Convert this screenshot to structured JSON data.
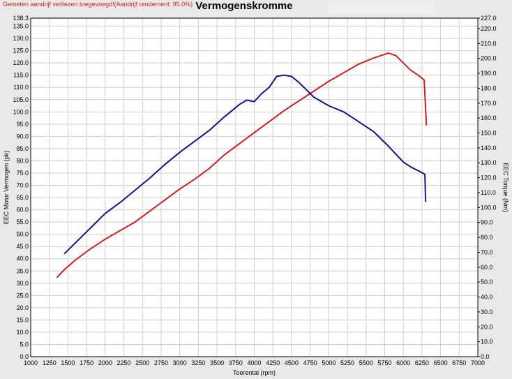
{
  "header": {
    "warning": "Gemeten aandrijf verliezen toegevoegd!(Aandrijf rendement: 95.0%)",
    "title": "Vermogenskromme"
  },
  "colors": {
    "background": "#e9e9e9",
    "plot_background": "#ffffff",
    "gridline": "#cfcfcf",
    "power_series": "#cc1f1f",
    "torque_series": "#11157f",
    "warning_text": "#d42020"
  },
  "chart_data": {
    "type": "line",
    "title": "Vermogenskromme",
    "xlabel": "Toerental (rpm)",
    "ylabel_left": "EEC Motor Vermogen (pk)",
    "ylabel_right": "EEC Torque (Nm)",
    "xlim": [
      1000,
      7000
    ],
    "ylim_left": [
      0,
      138.3
    ],
    "ylim_right": [
      0,
      227.0
    ],
    "grid": true,
    "x_ticks": [
      1000,
      1250,
      1500,
      1750,
      2000,
      2250,
      2500,
      2750,
      3000,
      3250,
      3500,
      3750,
      4000,
      4250,
      4500,
      4750,
      5000,
      5250,
      5500,
      5750,
      6000,
      6250,
      6500,
      6750,
      7000
    ],
    "y_left_ticks": [
      "0.0",
      "5.0",
      "10.0",
      "15.0",
      "20.0",
      "25.0",
      "30.0",
      "35.0",
      "40.0",
      "45.0",
      "50.0",
      "55.0",
      "60.0",
      "65.0",
      "70.0",
      "75.0",
      "80.0",
      "85.0",
      "90.0",
      "95.0",
      "100.0",
      "105.0",
      "110.0",
      "115.0",
      "120.0",
      "125.0",
      "130.0",
      "135.0",
      "138.3"
    ],
    "y_right_ticks": [
      "0.0",
      "10.0",
      "20.0",
      "30.0",
      "40.0",
      "50.0",
      "60.0",
      "70.0",
      "80.0",
      "90.0",
      "100.0",
      "110.0",
      "120.0",
      "130.0",
      "140.0",
      "150.0",
      "160.0",
      "170.0",
      "180.0",
      "190.0",
      "200.0",
      "210.0",
      "220.0",
      "227.0"
    ],
    "series": [
      {
        "axis": "left",
        "color": "#cc1f1f",
        "points": [
          [
            1350,
            32.3
          ],
          [
            1450,
            35.5
          ],
          [
            1600,
            39.5
          ],
          [
            1800,
            44.0
          ],
          [
            2000,
            48.0
          ],
          [
            2200,
            51.5
          ],
          [
            2400,
            55.0
          ],
          [
            2600,
            59.5
          ],
          [
            2800,
            64.0
          ],
          [
            3000,
            68.5
          ],
          [
            3200,
            72.5
          ],
          [
            3400,
            77.0
          ],
          [
            3600,
            82.5
          ],
          [
            3800,
            87.0
          ],
          [
            4000,
            91.5
          ],
          [
            4200,
            96.0
          ],
          [
            4400,
            100.5
          ],
          [
            4600,
            104.5
          ],
          [
            4800,
            108.5
          ],
          [
            5000,
            112.5
          ],
          [
            5200,
            116.0
          ],
          [
            5400,
            119.5
          ],
          [
            5600,
            122.0
          ],
          [
            5800,
            124.0
          ],
          [
            5900,
            123.0
          ],
          [
            6000,
            120.0
          ],
          [
            6100,
            117.0
          ],
          [
            6200,
            115.0
          ],
          [
            6280,
            113.0
          ],
          [
            6310,
            94.5
          ]
        ]
      },
      {
        "axis": "left",
        "color": "#11157f",
        "points": [
          [
            1450,
            42.0
          ],
          [
            1600,
            46.5
          ],
          [
            1800,
            52.5
          ],
          [
            2000,
            58.5
          ],
          [
            2200,
            63.0
          ],
          [
            2400,
            68.0
          ],
          [
            2600,
            73.0
          ],
          [
            2800,
            78.5
          ],
          [
            3000,
            83.5
          ],
          [
            3200,
            88.0
          ],
          [
            3400,
            92.5
          ],
          [
            3600,
            98.0
          ],
          [
            3800,
            103.0
          ],
          [
            3900,
            104.8
          ],
          [
            4000,
            104.2
          ],
          [
            4100,
            107.5
          ],
          [
            4200,
            110.0
          ],
          [
            4300,
            114.5
          ],
          [
            4400,
            115.0
          ],
          [
            4500,
            114.5
          ],
          [
            4600,
            112.0
          ],
          [
            4800,
            106.0
          ],
          [
            5000,
            102.5
          ],
          [
            5200,
            100.0
          ],
          [
            5400,
            96.0
          ],
          [
            5600,
            92.0
          ],
          [
            5800,
            86.0
          ],
          [
            6000,
            79.5
          ],
          [
            6100,
            77.5
          ],
          [
            6200,
            76.0
          ],
          [
            6290,
            74.5
          ],
          [
            6300,
            63.3
          ]
        ]
      }
    ]
  }
}
